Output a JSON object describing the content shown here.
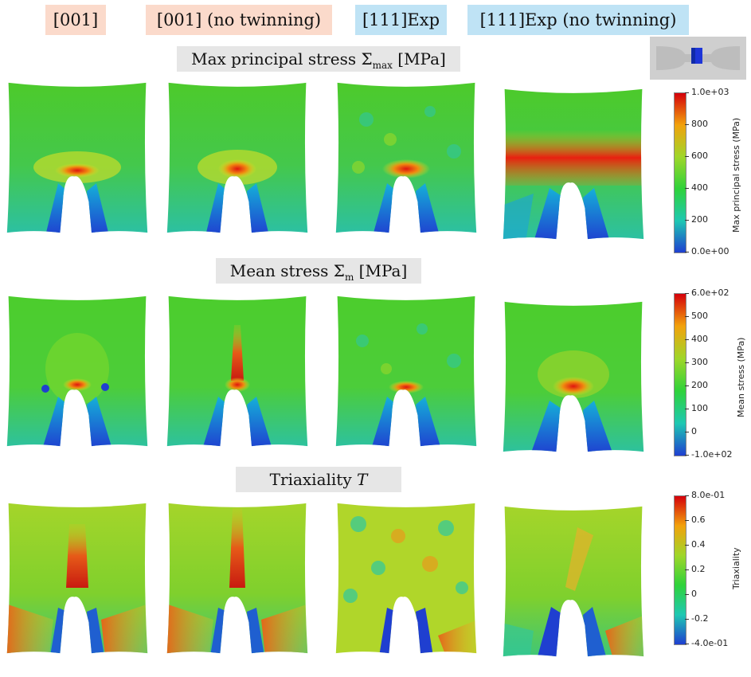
{
  "column_headers": [
    "[001]",
    "[001] (no twinning)",
    "[111]Exp",
    "[111]Exp (no twinning)"
  ],
  "rows": [
    {
      "title_main": "Max principal stress Σ",
      "title_sub": "max",
      "title_unit": " [MPa]"
    },
    {
      "title_main": "Mean stress Σ",
      "title_sub": "m",
      "title_unit": " [MPa]"
    },
    {
      "title_main": "Triaxiality ",
      "title_sub": "",
      "title_unit": "T"
    }
  ],
  "colorbars": [
    {
      "title": "Max principal stress (MPa)",
      "labels": [
        "1.0e+03",
        "800",
        "600",
        "400",
        "200",
        "0.0e+00"
      ]
    },
    {
      "title": "Mean stress (MPa)",
      "labels": [
        "6.0e+02",
        "500",
        "400",
        "300",
        "200",
        "100",
        "0",
        "-1.0e+02"
      ]
    },
    {
      "title": "Triaxiality",
      "labels": [
        "8.0e-01",
        "0.6",
        "0.4",
        "0.2",
        "0",
        "-0.2",
        "-4.0e-01"
      ]
    }
  ],
  "colors": {
    "header_salmon": "#fbdacb",
    "header_blue": "#bfe3f5",
    "title_gray": "#e6e6e6",
    "field_green": "#4ccd2c",
    "hot_red": "#e0150f",
    "cold_blue": "#1f3fd0"
  },
  "icons": {
    "specimen": "specimen-thumbnail-icon"
  }
}
